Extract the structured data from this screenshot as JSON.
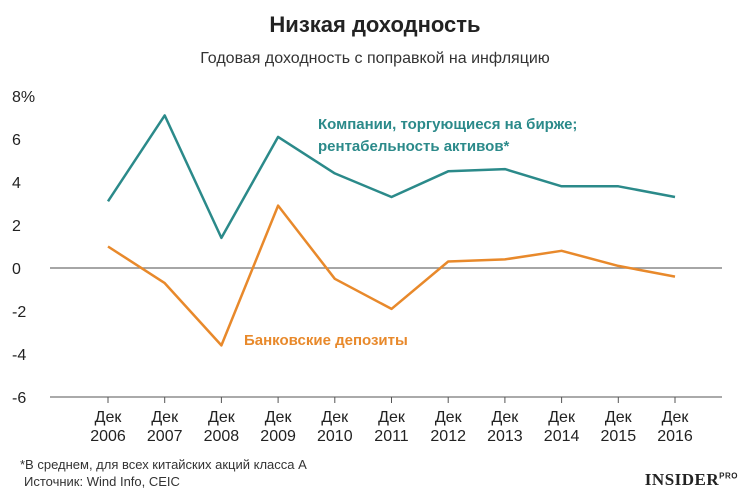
{
  "chart_data": {
    "type": "line",
    "title": "Низкая доходность",
    "subtitle": "Годовая доходность с поправкой на инфляцию",
    "categories": [
      "Дек 2006",
      "Дек 2007",
      "Дек 2008",
      "Дек 2009",
      "Дек 2010",
      "Дек 2011",
      "Дек 2012",
      "Дек 2013",
      "Дек 2014",
      "Дек 2015",
      "Дек 2016"
    ],
    "x_labels": [
      {
        "month": "Дек",
        "year": "2006"
      },
      {
        "month": "Дек",
        "year": "2007"
      },
      {
        "month": "Дек",
        "year": "2008"
      },
      {
        "month": "Дек",
        "year": "2009"
      },
      {
        "month": "Дек",
        "year": "2010"
      },
      {
        "month": "Дек",
        "year": "2011"
      },
      {
        "month": "Дек",
        "year": "2012"
      },
      {
        "month": "Дек",
        "year": "2013"
      },
      {
        "month": "Дек",
        "year": "2014"
      },
      {
        "month": "Дек",
        "year": "2015"
      },
      {
        "month": "Дек",
        "year": "2016"
      }
    ],
    "y_ticks": [
      "8%",
      "6",
      "4",
      "2",
      "0",
      "-2",
      "-4",
      "-6"
    ],
    "y_tick_values": [
      8,
      6,
      4,
      2,
      0,
      -2,
      -4,
      -6
    ],
    "ylim": [
      -6,
      8
    ],
    "grid": false,
    "series": [
      {
        "label_lines": [
          "Компании, торгующиеся на бирже;",
          "рентабельность активов*"
        ],
        "color": "#2b8a8a",
        "values": [
          3.1,
          7.1,
          1.4,
          6.1,
          4.4,
          3.3,
          4.5,
          4.6,
          3.8,
          3.8,
          3.3
        ]
      },
      {
        "label_lines": [
          "Банковские депозиты"
        ],
        "color": "#e8892b",
        "values": [
          1.0,
          -0.7,
          -3.6,
          2.9,
          -0.5,
          -1.9,
          0.3,
          0.4,
          0.8,
          0.1,
          -0.4
        ]
      }
    ],
    "annotations": [
      "*В среднем, для всех китайских акций класса А",
      "Источник: Wind Info, CEIC"
    ]
  },
  "logo": {
    "text": "INSIDER",
    "suffix": "PRO"
  }
}
